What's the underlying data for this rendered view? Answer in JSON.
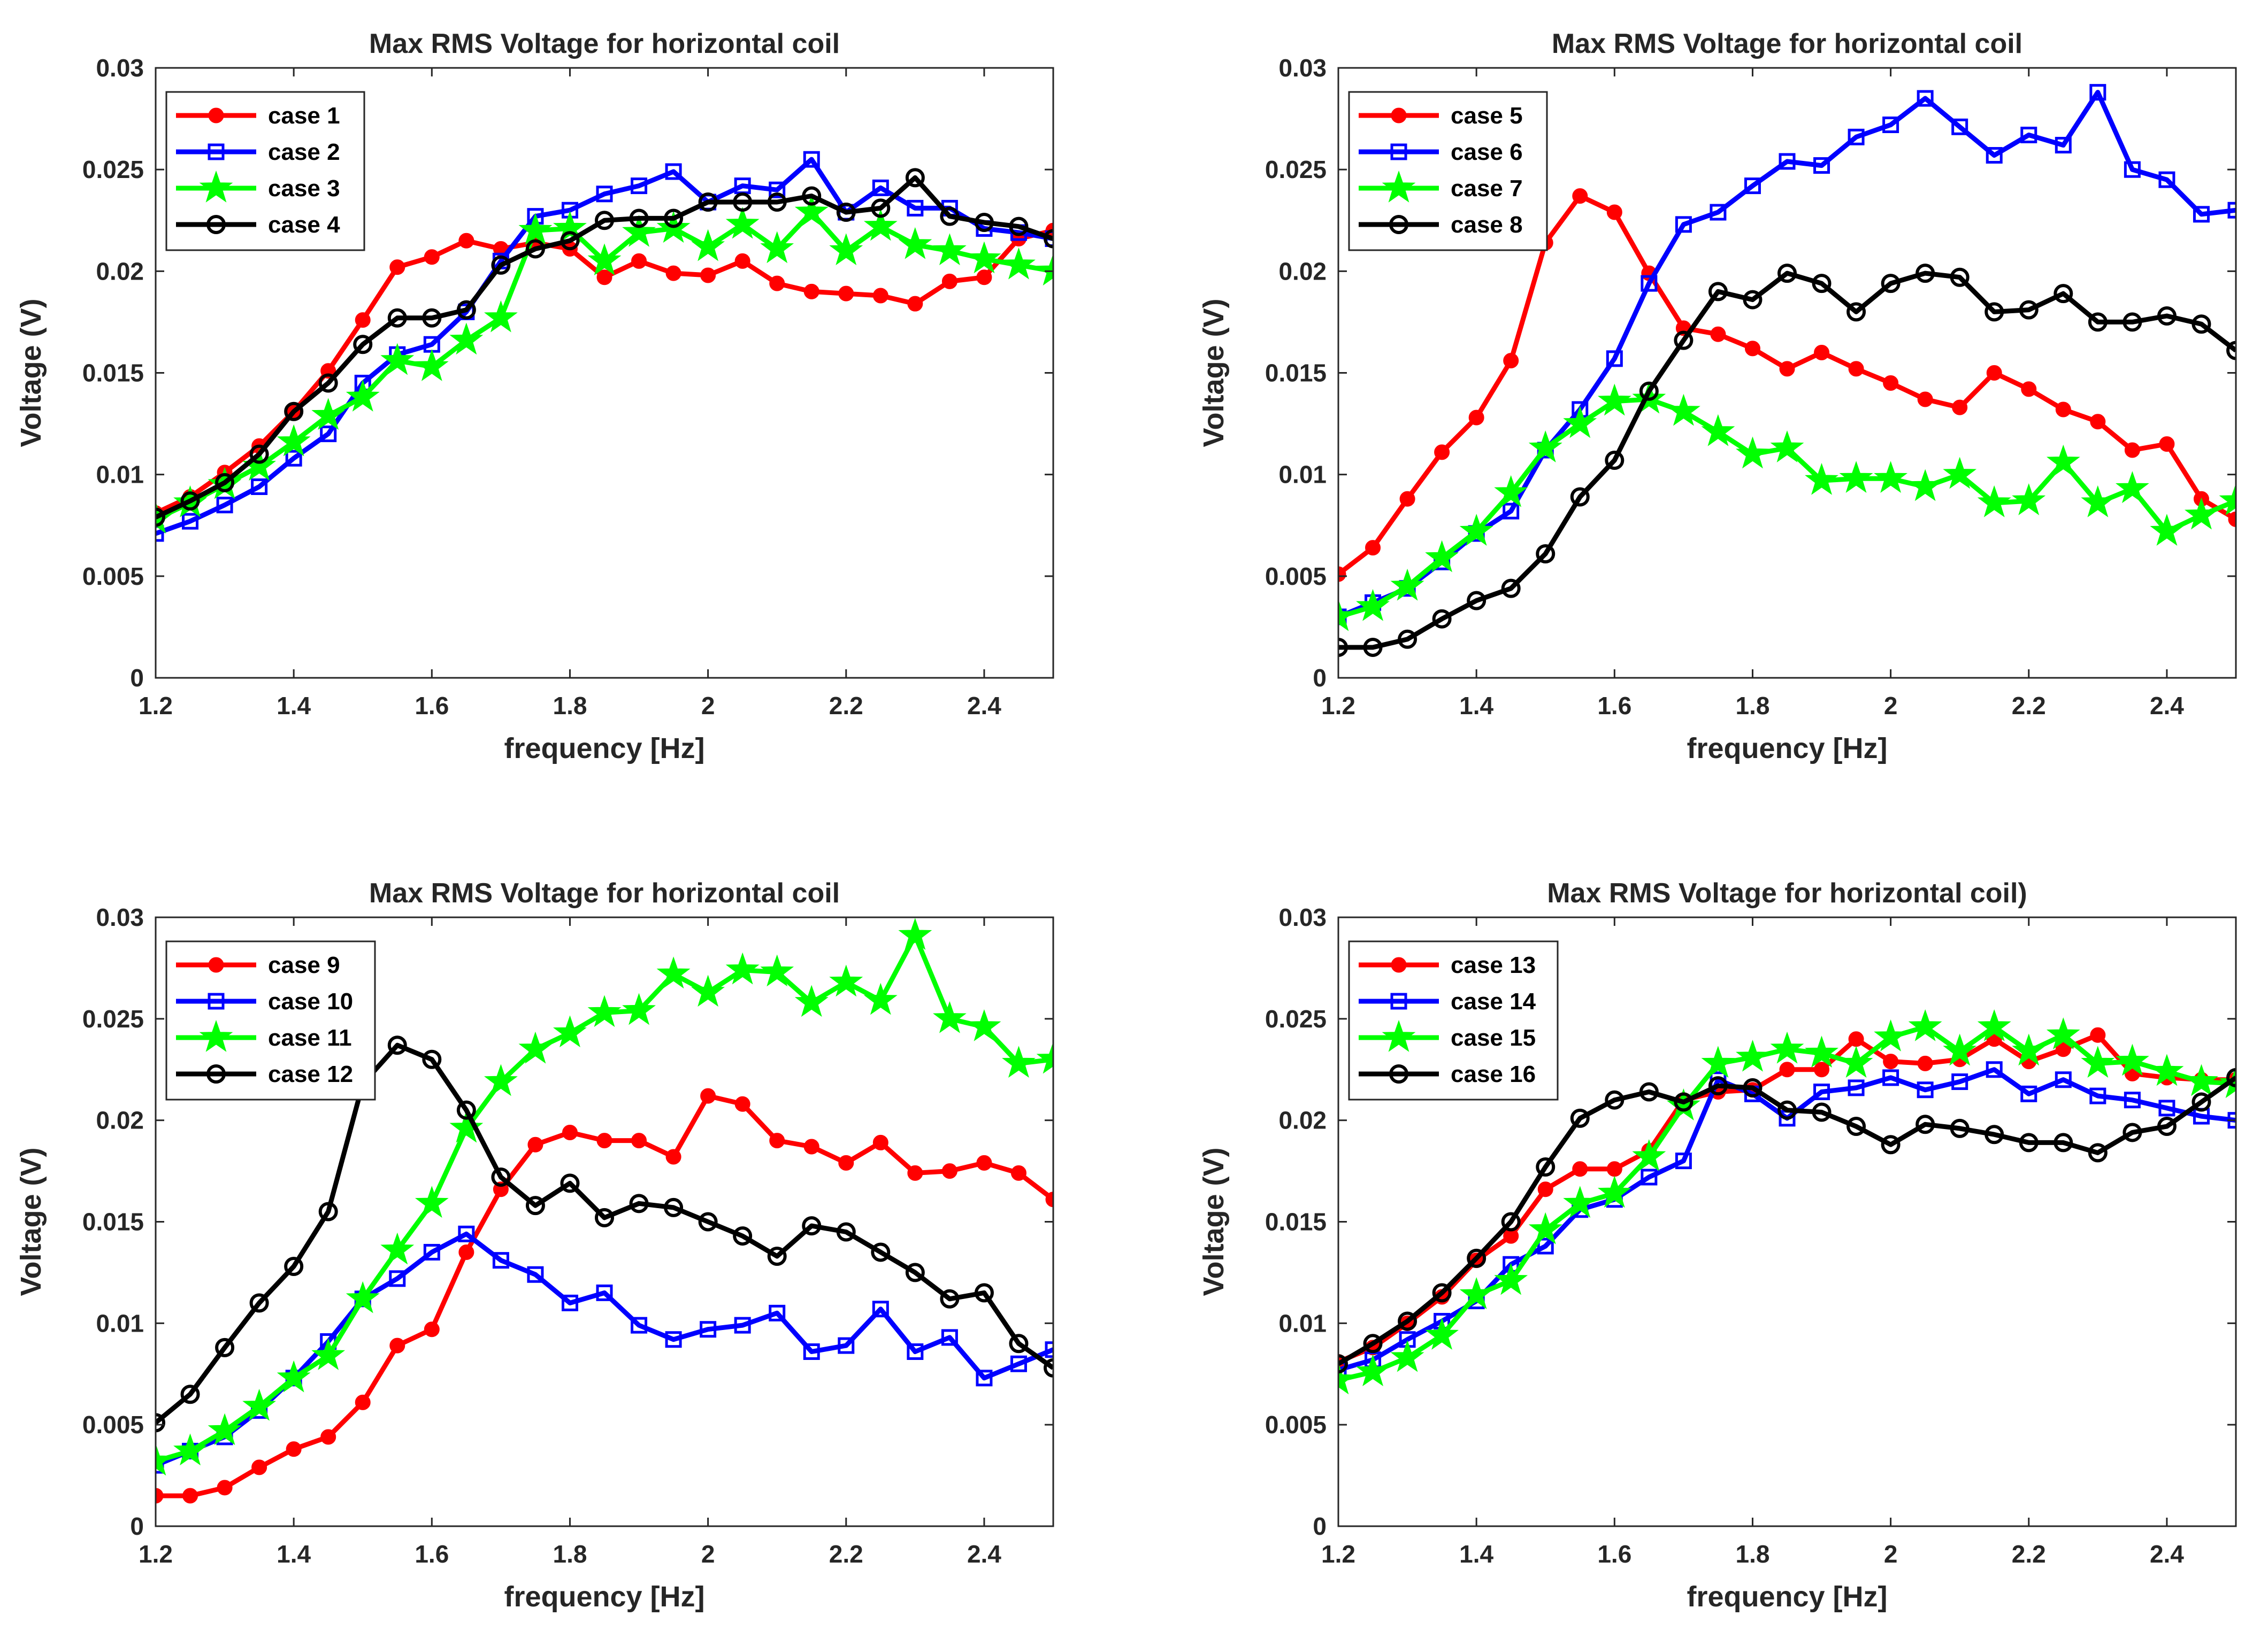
{
  "chart_data": [
    {
      "type": "line",
      "title": "Max RMS Voltage for horizontal coil",
      "xlabel": "frequency [Hz]",
      "ylabel": "Voltage (V)",
      "xlim": [
        1.2,
        2.5
      ],
      "ylim": [
        0,
        0.03
      ],
      "xticks": [
        "1.2",
        "1.4",
        "1.6",
        "1.8",
        "2",
        "2.2",
        "2.4"
      ],
      "yticks": [
        "0",
        "0.005",
        "0.01",
        "0.015",
        "0.02",
        "0.025",
        "0.03"
      ],
      "legend_position": "top-left",
      "x": [
        1.2,
        1.25,
        1.3,
        1.35,
        1.4,
        1.45,
        1.5,
        1.55,
        1.6,
        1.65,
        1.7,
        1.75,
        1.8,
        1.85,
        1.9,
        1.95,
        2.0,
        2.05,
        2.1,
        2.15,
        2.2,
        2.25,
        2.3,
        2.35,
        2.4,
        2.45,
        2.5
      ],
      "series": [
        {
          "name": "case 1",
          "color": "#ff0000",
          "marker": "filled-circle",
          "values": [
            0.0081,
            0.0089,
            0.0101,
            0.0114,
            0.0131,
            0.0151,
            0.0176,
            0.0202,
            0.0207,
            0.0215,
            0.0211,
            0.0214,
            0.0211,
            0.0197,
            0.0205,
            0.0199,
            0.0198,
            0.0205,
            0.0194,
            0.019,
            0.0189,
            0.0188,
            0.0184,
            0.0195,
            0.0197,
            0.0216,
            0.022
          ]
        },
        {
          "name": "case 2",
          "color": "#0000ff",
          "marker": "open-square",
          "values": [
            0.0071,
            0.0077,
            0.0085,
            0.0094,
            0.0108,
            0.012,
            0.0145,
            0.0159,
            0.0164,
            0.018,
            0.0205,
            0.0227,
            0.023,
            0.0238,
            0.0242,
            0.0249,
            0.0234,
            0.0242,
            0.024,
            0.0255,
            0.0229,
            0.0241,
            0.0231,
            0.0231,
            0.0221,
            0.0219,
            0.0216
          ]
        },
        {
          "name": "case 3",
          "color": "#00ff00",
          "marker": "star",
          "values": [
            0.0078,
            0.0086,
            0.0095,
            0.0104,
            0.0116,
            0.0129,
            0.0138,
            0.0156,
            0.0153,
            0.0166,
            0.0177,
            0.022,
            0.0221,
            0.0205,
            0.0219,
            0.0221,
            0.0212,
            0.0223,
            0.0211,
            0.0229,
            0.021,
            0.0222,
            0.0213,
            0.021,
            0.0206,
            0.0203,
            0.02
          ]
        },
        {
          "name": "case 4",
          "color": "#000000",
          "marker": "open-circle",
          "values": [
            0.0079,
            0.0087,
            0.0096,
            0.011,
            0.0131,
            0.0145,
            0.0164,
            0.0177,
            0.0177,
            0.0181,
            0.0203,
            0.0211,
            0.0215,
            0.0225,
            0.0226,
            0.0226,
            0.0234,
            0.0234,
            0.0234,
            0.0237,
            0.0229,
            0.0231,
            0.0246,
            0.0227,
            0.0224,
            0.0222,
            0.0216
          ]
        }
      ]
    },
    {
      "type": "line",
      "title": "Max RMS Voltage for horizontal coil",
      "xlabel": "frequency [Hz]",
      "ylabel": "Voltage (V)",
      "xlim": [
        1.2,
        2.5
      ],
      "ylim": [
        0,
        0.03
      ],
      "xticks": [
        "1.2",
        "1.4",
        "1.6",
        "1.8",
        "2",
        "2.2",
        "2.4"
      ],
      "yticks": [
        "0",
        "0.005",
        "0.01",
        "0.015",
        "0.02",
        "0.025",
        "0.03"
      ],
      "legend_position": "top-left",
      "x": [
        1.2,
        1.25,
        1.3,
        1.35,
        1.4,
        1.45,
        1.5,
        1.55,
        1.6,
        1.65,
        1.7,
        1.75,
        1.8,
        1.85,
        1.9,
        1.95,
        2.0,
        2.05,
        2.1,
        2.15,
        2.2,
        2.25,
        2.3,
        2.35,
        2.4,
        2.45,
        2.5
      ],
      "series": [
        {
          "name": "case 5",
          "color": "#ff0000",
          "marker": "filled-circle",
          "values": [
            0.0051,
            0.0064,
            0.0088,
            0.0111,
            0.0128,
            0.0156,
            0.0214,
            0.0237,
            0.0229,
            0.0199,
            0.0172,
            0.0169,
            0.0162,
            0.0152,
            0.016,
            0.0152,
            0.0145,
            0.0137,
            0.0133,
            0.015,
            0.0142,
            0.0132,
            0.0126,
            0.0112,
            0.0115,
            0.0088,
            0.0078
          ]
        },
        {
          "name": "case 6",
          "color": "#0000ff",
          "marker": "open-square",
          "values": [
            0.003,
            0.0037,
            0.0044,
            0.0057,
            0.0071,
            0.0082,
            0.0112,
            0.0132,
            0.0157,
            0.0194,
            0.0223,
            0.0229,
            0.0242,
            0.0254,
            0.0252,
            0.0266,
            0.0272,
            0.0285,
            0.0271,
            0.0257,
            0.0267,
            0.0262,
            0.0288,
            0.025,
            0.0245,
            0.0228,
            0.023
          ]
        },
        {
          "name": "case 7",
          "color": "#00ff00",
          "marker": "star",
          "values": [
            0.003,
            0.0035,
            0.0045,
            0.0059,
            0.0072,
            0.0091,
            0.0113,
            0.0125,
            0.0136,
            0.0137,
            0.0131,
            0.0121,
            0.011,
            0.0113,
            0.0097,
            0.0098,
            0.0098,
            0.0094,
            0.01,
            0.0086,
            0.0087,
            0.0106,
            0.0086,
            0.0093,
            0.0072,
            0.008,
            0.0087
          ]
        },
        {
          "name": "case 8",
          "color": "#000000",
          "marker": "open-circle",
          "values": [
            0.0015,
            0.0015,
            0.0019,
            0.0029,
            0.0038,
            0.0044,
            0.0061,
            0.0089,
            0.0107,
            0.0141,
            0.0166,
            0.019,
            0.0186,
            0.0199,
            0.0194,
            0.018,
            0.0194,
            0.0199,
            0.0197,
            0.018,
            0.0181,
            0.0189,
            0.0175,
            0.0175,
            0.0178,
            0.0174,
            0.0161
          ]
        }
      ]
    },
    {
      "type": "line",
      "title": "Max RMS Voltage for horizontal coil",
      "xlabel": "frequency [Hz]",
      "ylabel": "Voltage (V)",
      "xlim": [
        1.2,
        2.5
      ],
      "ylim": [
        0,
        0.03
      ],
      "xticks": [
        "1.2",
        "1.4",
        "1.6",
        "1.8",
        "2",
        "2.2",
        "2.4"
      ],
      "yticks": [
        "0",
        "0.005",
        "0.01",
        "0.015",
        "0.02",
        "0.025",
        "0.03"
      ],
      "legend_position": "top-left",
      "x": [
        1.2,
        1.25,
        1.3,
        1.35,
        1.4,
        1.45,
        1.5,
        1.55,
        1.6,
        1.65,
        1.7,
        1.75,
        1.8,
        1.85,
        1.9,
        1.95,
        2.0,
        2.05,
        2.1,
        2.15,
        2.2,
        2.25,
        2.3,
        2.35,
        2.4,
        2.45,
        2.5
      ],
      "series": [
        {
          "name": "case 9",
          "color": "#ff0000",
          "marker": "filled-circle",
          "values": [
            0.0015,
            0.0015,
            0.0019,
            0.0029,
            0.0038,
            0.0044,
            0.0061,
            0.0089,
            0.0097,
            0.0135,
            0.0166,
            0.0188,
            0.0194,
            0.019,
            0.019,
            0.0182,
            0.0212,
            0.0208,
            0.019,
            0.0187,
            0.0179,
            0.0189,
            0.0174,
            0.0175,
            0.0179,
            0.0174,
            0.0161
          ]
        },
        {
          "name": "case 10",
          "color": "#0000ff",
          "marker": "open-square",
          "values": [
            0.003,
            0.0037,
            0.0044,
            0.0057,
            0.0073,
            0.0091,
            0.0112,
            0.0122,
            0.0135,
            0.0144,
            0.0131,
            0.0124,
            0.011,
            0.0115,
            0.0099,
            0.0092,
            0.0097,
            0.0099,
            0.0105,
            0.0086,
            0.0089,
            0.0107,
            0.0086,
            0.0093,
            0.0073,
            0.008,
            0.0087
          ]
        },
        {
          "name": "case 11",
          "color": "#00ff00",
          "marker": "star",
          "values": [
            0.0032,
            0.0037,
            0.0047,
            0.0059,
            0.0073,
            0.0084,
            0.0112,
            0.0136,
            0.0159,
            0.0196,
            0.0219,
            0.0235,
            0.0243,
            0.0253,
            0.0254,
            0.0272,
            0.0263,
            0.0274,
            0.0273,
            0.0258,
            0.0268,
            0.0259,
            0.0291,
            0.025,
            0.0246,
            0.0228,
            0.023
          ]
        },
        {
          "name": "case 12",
          "color": "#000000",
          "marker": "open-circle",
          "values": [
            0.0051,
            0.0065,
            0.0088,
            0.011,
            0.0128,
            0.0155,
            0.0218,
            0.0237,
            0.023,
            0.0205,
            0.0172,
            0.0158,
            0.0169,
            0.0152,
            0.0159,
            0.0157,
            0.015,
            0.0143,
            0.0133,
            0.0148,
            0.0145,
            0.0135,
            0.0125,
            0.0112,
            0.0115,
            0.009,
            0.0078
          ]
        }
      ]
    },
    {
      "type": "line",
      "title": "Max RMS Voltage for horizontal coil)",
      "xlabel": "frequency [Hz]",
      "ylabel": "Voltage (V)",
      "xlim": [
        1.2,
        2.5
      ],
      "ylim": [
        0,
        0.03
      ],
      "xticks": [
        "1.2",
        "1.4",
        "1.6",
        "1.8",
        "2",
        "2.2",
        "2.4"
      ],
      "yticks": [
        "0",
        "0.005",
        "0.01",
        "0.015",
        "0.02",
        "0.025",
        "0.03"
      ],
      "legend_position": "top-left",
      "x": [
        1.2,
        1.25,
        1.3,
        1.35,
        1.4,
        1.45,
        1.5,
        1.55,
        1.6,
        1.65,
        1.7,
        1.75,
        1.8,
        1.85,
        1.9,
        1.95,
        2.0,
        2.05,
        2.1,
        2.15,
        2.2,
        2.25,
        2.3,
        2.35,
        2.4,
        2.45,
        2.5
      ],
      "series": [
        {
          "name": "case 13",
          "color": "#ff0000",
          "marker": "filled-circle",
          "values": [
            0.0081,
            0.0088,
            0.01,
            0.0113,
            0.0131,
            0.0143,
            0.0166,
            0.0176,
            0.0176,
            0.0185,
            0.021,
            0.0214,
            0.0215,
            0.0225,
            0.0225,
            0.024,
            0.0229,
            0.0228,
            0.023,
            0.024,
            0.0229,
            0.0235,
            0.0242,
            0.0223,
            0.0221,
            0.022,
            0.022
          ]
        },
        {
          "name": "case 14",
          "color": "#0000ff",
          "marker": "open-square",
          "values": [
            0.0077,
            0.0082,
            0.0092,
            0.0101,
            0.0111,
            0.0129,
            0.0138,
            0.0156,
            0.0161,
            0.0172,
            0.018,
            0.022,
            0.0213,
            0.0201,
            0.0214,
            0.0216,
            0.0221,
            0.0215,
            0.0219,
            0.0225,
            0.0213,
            0.022,
            0.0212,
            0.021,
            0.0206,
            0.0202,
            0.02
          ]
        },
        {
          "name": "case 15",
          "color": "#00ff00",
          "marker": "star",
          "values": [
            0.0072,
            0.0076,
            0.0083,
            0.0094,
            0.0114,
            0.0121,
            0.0146,
            0.0159,
            0.0164,
            0.0182,
            0.0207,
            0.0228,
            0.0231,
            0.0235,
            0.0233,
            0.0228,
            0.0241,
            0.0246,
            0.0234,
            0.0246,
            0.0234,
            0.0242,
            0.0228,
            0.0229,
            0.0224,
            0.0219,
            0.0218
          ]
        },
        {
          "name": "case 16",
          "color": "#000000",
          "marker": "open-circle",
          "values": [
            0.008,
            0.009,
            0.0101,
            0.0115,
            0.0132,
            0.015,
            0.0177,
            0.0201,
            0.021,
            0.0214,
            0.0209,
            0.0217,
            0.0216,
            0.0205,
            0.0204,
            0.0197,
            0.0188,
            0.0198,
            0.0196,
            0.0193,
            0.0189,
            0.0189,
            0.0184,
            0.0194,
            0.0197,
            0.0209,
            0.0221
          ]
        }
      ]
    }
  ]
}
